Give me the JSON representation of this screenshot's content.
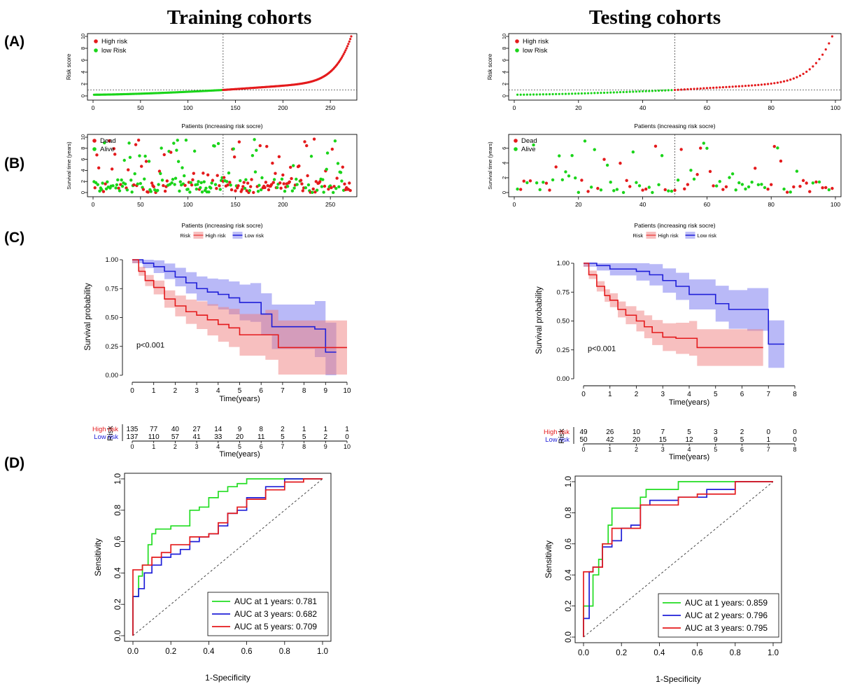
{
  "panel_letters": [
    "(A)",
    "(B)",
    "(C)",
    "(D)"
  ],
  "colors": {
    "high": "#e41a1c",
    "low_green": "#1ad41a",
    "low_blue": "#1f1fd8",
    "auc1": "#22dd22",
    "auc2": "#1f1fd8",
    "auc3": "#e41a1c",
    "band_red": "#f08080",
    "band_blue": "#8080f0"
  },
  "columns": [
    {
      "key": "train",
      "title": "Training cohorts",
      "riskscore": {
        "ylabel": "Risk score",
        "xlabel": "Patients (increasing risk socre)",
        "n": 272,
        "cut": 137,
        "xlim": [
          0,
          272
        ],
        "xticks": [
          0,
          50,
          100,
          150,
          200,
          250
        ],
        "yticks": [
          0,
          2,
          4,
          6,
          8,
          10
        ],
        "ylim": [
          0,
          10
        ],
        "hline": 1,
        "legend": [
          "High risk",
          "low Risk"
        ]
      },
      "survival": {
        "ylabel": "Survival time (years)",
        "xlabel": "Patients (increasing risk socre)",
        "xticks": [
          0,
          50,
          100,
          150,
          200,
          250
        ],
        "xlim": [
          0,
          272
        ],
        "yticks": [
          0,
          2,
          4,
          6,
          8,
          10
        ],
        "ylim": [
          0,
          10
        ],
        "cut": 137,
        "legend": [
          "Dead",
          "Alive"
        ],
        "risk_legend": [
          "Risk",
          "High risk",
          "Low risk"
        ]
      },
      "km": {
        "ylabel": "Survival probability",
        "xlabel": "Time(years)",
        "pvalue": "p<0.001",
        "xticks": [
          0,
          1,
          2,
          3,
          4,
          5,
          6,
          7,
          8,
          9,
          10
        ],
        "xlim": [
          0,
          10
        ],
        "yticks": [
          "0.00",
          "0.25",
          "0.50",
          "0.75",
          "1.00"
        ],
        "high": [
          [
            0,
            1
          ],
          [
            0.3,
            0.9
          ],
          [
            0.6,
            0.82
          ],
          [
            1,
            0.76
          ],
          [
            1.5,
            0.66
          ],
          [
            2,
            0.6
          ],
          [
            2.5,
            0.55
          ],
          [
            3,
            0.52
          ],
          [
            3.5,
            0.48
          ],
          [
            4,
            0.44
          ],
          [
            4.5,
            0.41
          ],
          [
            5,
            0.35
          ],
          [
            6.2,
            0.35
          ],
          [
            6.8,
            0.24
          ],
          [
            10,
            0.24
          ]
        ],
        "low": [
          [
            0,
            1
          ],
          [
            0.5,
            0.97
          ],
          [
            1,
            0.94
          ],
          [
            1.5,
            0.9
          ],
          [
            2,
            0.85
          ],
          [
            2.5,
            0.8
          ],
          [
            3,
            0.75
          ],
          [
            3.5,
            0.72
          ],
          [
            4,
            0.7
          ],
          [
            4.5,
            0.67
          ],
          [
            5,
            0.63
          ],
          [
            5.5,
            0.63
          ],
          [
            6,
            0.53
          ],
          [
            6.5,
            0.42
          ],
          [
            8.5,
            0.4
          ],
          [
            9,
            0.2
          ],
          [
            9.5,
            0.2
          ]
        ],
        "risk_table": {
          "label": "Risk",
          "rows": [
            {
              "name": "High risk",
              "values": [
                "135",
                "77",
                "40",
                "27",
                "14",
                "9",
                "8",
                "2",
                "1",
                "1",
                "1"
              ]
            },
            {
              "name": "Low risk",
              "values": [
                "137",
                "110",
                "57",
                "41",
                "33",
                "20",
                "11",
                "5",
                "5",
                "2",
                "0"
              ]
            }
          ],
          "xticks": [
            "0",
            "1",
            "2",
            "3",
            "4",
            "5",
            "6",
            "7",
            "8",
            "9",
            "10"
          ],
          "xlabel": "Time(years)"
        }
      },
      "roc": {
        "ylabel": "Sensitivity",
        "xlabel": "1-Specificity",
        "ticks": [
          "0.0",
          "0.2",
          "0.4",
          "0.6",
          "0.8",
          "1.0"
        ],
        "legend": [
          "AUC at 1 years: 0.781",
          "AUC at 3 years: 0.682",
          "AUC at 5 years: 0.709"
        ],
        "curves": [
          [
            [
              0,
              0
            ],
            [
              0,
              0.15
            ],
            [
              0.03,
              0.25
            ],
            [
              0.05,
              0.38
            ],
            [
              0.08,
              0.45
            ],
            [
              0.1,
              0.58
            ],
            [
              0.12,
              0.65
            ],
            [
              0.2,
              0.68
            ],
            [
              0.3,
              0.7
            ],
            [
              0.35,
              0.8
            ],
            [
              0.4,
              0.82
            ],
            [
              0.45,
              0.88
            ],
            [
              0.5,
              0.92
            ],
            [
              0.55,
              0.95
            ],
            [
              0.6,
              0.97
            ],
            [
              0.65,
              1.0
            ],
            [
              1,
              1
            ]
          ],
          [
            [
              0,
              0
            ],
            [
              0.03,
              0.25
            ],
            [
              0.06,
              0.3
            ],
            [
              0.1,
              0.4
            ],
            [
              0.15,
              0.45
            ],
            [
              0.2,
              0.5
            ],
            [
              0.25,
              0.52
            ],
            [
              0.3,
              0.55
            ],
            [
              0.35,
              0.6
            ],
            [
              0.4,
              0.63
            ],
            [
              0.45,
              0.65
            ],
            [
              0.5,
              0.7
            ],
            [
              0.55,
              0.78
            ],
            [
              0.6,
              0.8
            ],
            [
              0.7,
              0.88
            ],
            [
              0.8,
              0.95
            ],
            [
              0.9,
              1.0
            ],
            [
              1,
              1
            ]
          ],
          [
            [
              0,
              0
            ],
            [
              0,
              0.42
            ],
            [
              0.05,
              0.42
            ],
            [
              0.1,
              0.45
            ],
            [
              0.15,
              0.5
            ],
            [
              0.2,
              0.53
            ],
            [
              0.3,
              0.58
            ],
            [
              0.4,
              0.63
            ],
            [
              0.45,
              0.65
            ],
            [
              0.5,
              0.72
            ],
            [
              0.55,
              0.78
            ],
            [
              0.6,
              0.82
            ],
            [
              0.7,
              0.87
            ],
            [
              0.8,
              0.93
            ],
            [
              0.9,
              0.98
            ],
            [
              1,
              1
            ]
          ]
        ]
      }
    },
    {
      "key": "test",
      "title": "Testing cohorts",
      "riskscore": {
        "ylabel": "Risk score",
        "xlabel": "Patients (increasing risk socre)",
        "n": 99,
        "cut": 50,
        "xlim": [
          0,
          100
        ],
        "xticks": [
          0,
          20,
          40,
          60,
          80,
          100
        ],
        "yticks": [
          0,
          2,
          4,
          6,
          8,
          10
        ],
        "ylim": [
          0,
          10
        ],
        "hline": 1,
        "legend": [
          "High risk",
          "low Risk"
        ]
      },
      "survival": {
        "ylabel": "Survival time (years)",
        "xlabel": "Patients (increasing risk socre)",
        "xticks": [
          0,
          20,
          40,
          60,
          80,
          100
        ],
        "xlim": [
          0,
          100
        ],
        "yticks": [
          0,
          2,
          4,
          6
        ],
        "ylim": [
          0,
          7.5
        ],
        "cut": 50,
        "legend": [
          "Dead",
          "Alive"
        ],
        "risk_legend": [
          "Risk",
          "High risk",
          "Low risk"
        ]
      },
      "km": {
        "ylabel": "Survival probability",
        "xlabel": "Time(years)",
        "pvalue": "p<0.001",
        "xticks": [
          0,
          1,
          2,
          3,
          4,
          5,
          6,
          7,
          8
        ],
        "xlim": [
          0,
          8
        ],
        "yticks": [
          "0.00",
          "0.25",
          "0.50",
          "0.75",
          "1.00"
        ],
        "high": [
          [
            0,
            1
          ],
          [
            0.2,
            0.9
          ],
          [
            0.5,
            0.8
          ],
          [
            0.8,
            0.72
          ],
          [
            1,
            0.68
          ],
          [
            1.3,
            0.6
          ],
          [
            1.6,
            0.55
          ],
          [
            2,
            0.5
          ],
          [
            2.3,
            0.45
          ],
          [
            2.6,
            0.4
          ],
          [
            3,
            0.36
          ],
          [
            3.5,
            0.35
          ],
          [
            4,
            0.35
          ],
          [
            4.3,
            0.27
          ],
          [
            6.8,
            0.27
          ]
        ],
        "low": [
          [
            0,
            1
          ],
          [
            0.5,
            0.98
          ],
          [
            1,
            0.95
          ],
          [
            2,
            0.93
          ],
          [
            2.5,
            0.9
          ],
          [
            3,
            0.85
          ],
          [
            3.5,
            0.8
          ],
          [
            4,
            0.73
          ],
          [
            5,
            0.65
          ],
          [
            5.5,
            0.6
          ],
          [
            6.2,
            0.6
          ],
          [
            7,
            0.6
          ],
          [
            7,
            0.3
          ],
          [
            7.6,
            0.3
          ]
        ],
        "risk_table": {
          "label": "Risk",
          "rows": [
            {
              "name": "High risk",
              "values": [
                "49",
                "26",
                "10",
                "7",
                "5",
                "3",
                "2",
                "0",
                "0"
              ]
            },
            {
              "name": "Low risk",
              "values": [
                "50",
                "42",
                "20",
                "15",
                "12",
                "9",
                "5",
                "1",
                "0"
              ]
            }
          ],
          "xticks": [
            "0",
            "1",
            "2",
            "3",
            "4",
            "5",
            "6",
            "7",
            "8"
          ],
          "xlabel": "Time(years)"
        }
      },
      "roc": {
        "ylabel": "Sensitivity",
        "xlabel": "1-Specificity",
        "ticks": [
          "0.0",
          "0.2",
          "0.4",
          "0.6",
          "0.8",
          "1.0"
        ],
        "legend": [
          "AUC at 1 years: 0.859",
          "AUC at 2 years: 0.796",
          "AUC at 3 years: 0.795"
        ],
        "curves": [
          [
            [
              0,
              0
            ],
            [
              0,
              0.12
            ],
            [
              0.05,
              0.2
            ],
            [
              0.08,
              0.4
            ],
            [
              0.1,
              0.5
            ],
            [
              0.13,
              0.6
            ],
            [
              0.15,
              0.72
            ],
            [
              0.18,
              0.83
            ],
            [
              0.3,
              0.83
            ],
            [
              0.33,
              0.9
            ],
            [
              0.5,
              0.95
            ],
            [
              0.55,
              1.0
            ],
            [
              1,
              1
            ]
          ],
          [
            [
              0,
              0
            ],
            [
              0,
              0.12
            ],
            [
              0.03,
              0.12
            ],
            [
              0.05,
              0.42
            ],
            [
              0.1,
              0.45
            ],
            [
              0.15,
              0.58
            ],
            [
              0.2,
              0.62
            ],
            [
              0.25,
              0.7
            ],
            [
              0.3,
              0.72
            ],
            [
              0.35,
              0.85
            ],
            [
              0.5,
              0.88
            ],
            [
              0.65,
              0.9
            ],
            [
              0.8,
              0.95
            ],
            [
              0.85,
              1.0
            ],
            [
              1,
              1
            ]
          ],
          [
            [
              0,
              0
            ],
            [
              0,
              0.42
            ],
            [
              0.05,
              0.42
            ],
            [
              0.1,
              0.45
            ],
            [
              0.15,
              0.6
            ],
            [
              0.2,
              0.7
            ],
            [
              0.3,
              0.7
            ],
            [
              0.35,
              0.85
            ],
            [
              0.5,
              0.85
            ],
            [
              0.6,
              0.9
            ],
            [
              0.8,
              0.92
            ],
            [
              0.82,
              1.0
            ],
            [
              1,
              1
            ]
          ]
        ]
      }
    }
  ]
}
